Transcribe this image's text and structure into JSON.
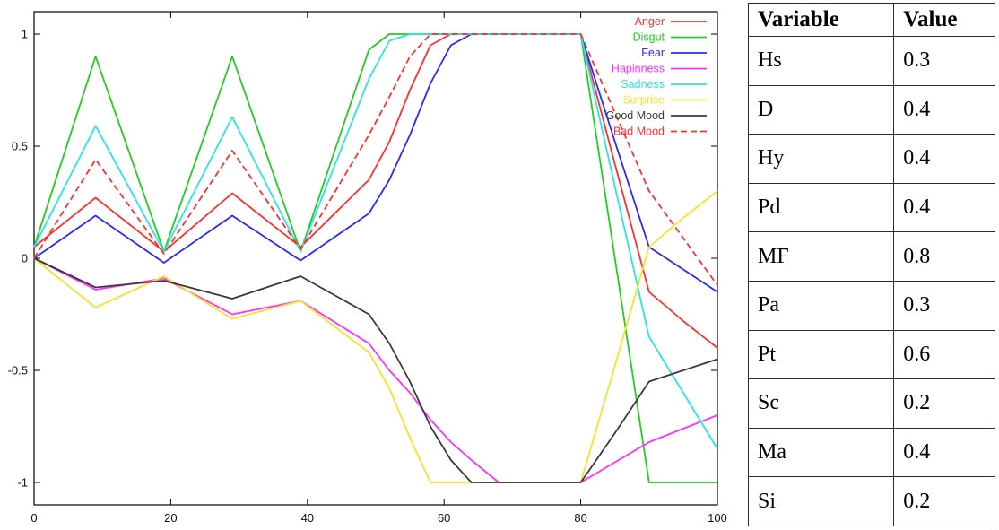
{
  "chart_data": {
    "type": "line",
    "title": "",
    "xlabel": "",
    "ylabel": "",
    "xlim": [
      0,
      100
    ],
    "ylim": [
      -1.1,
      1.1
    ],
    "grid": false,
    "legend_position": "top-right",
    "x_ticks": [
      0,
      20,
      40,
      60,
      80,
      100
    ],
    "y_ticks": [
      -1,
      -0.5,
      0,
      0.5,
      1
    ],
    "y_tick_labels": [
      "-1",
      "-0.5",
      "0",
      "0.5",
      "1"
    ],
    "x": [
      0,
      9,
      19,
      29,
      39,
      49,
      52,
      55,
      58,
      61,
      64,
      68,
      80,
      85,
      90,
      95,
      100
    ],
    "series": [
      {
        "name": "Anger",
        "color": "#ff2f2f",
        "dash": null,
        "values": [
          0.05,
          0.27,
          0.03,
          0.29,
          0.05,
          0.35,
          0.52,
          0.75,
          0.95,
          1,
          1,
          1,
          1,
          0.42,
          -0.15,
          -0.28,
          -0.4
        ]
      },
      {
        "name": "Disgut",
        "color": "#22cc22",
        "dash": null,
        "values": [
          0.05,
          0.9,
          0.03,
          0.9,
          0.03,
          0.93,
          1,
          1,
          1,
          1,
          1,
          1,
          1,
          0.0,
          -1,
          -1,
          -1
        ]
      },
      {
        "name": "Fear",
        "color": "#2929ff",
        "dash": null,
        "values": [
          0.0,
          0.19,
          -0.02,
          0.19,
          -0.01,
          0.2,
          0.35,
          0.55,
          0.78,
          0.95,
          1,
          1,
          1,
          0.52,
          0.05,
          -0.05,
          -0.15
        ]
      },
      {
        "name": "Hapinness",
        "color": "#ff30ff",
        "dash": null,
        "values": [
          0.0,
          -0.14,
          -0.09,
          -0.25,
          -0.19,
          -0.38,
          -0.5,
          -0.6,
          -0.72,
          -0.82,
          -0.9,
          -1,
          -1,
          -0.91,
          -0.82,
          -0.76,
          -0.7
        ]
      },
      {
        "name": "Sadness",
        "color": "#2be4e4",
        "dash": null,
        "values": [
          0.05,
          0.59,
          0.03,
          0.63,
          0.03,
          0.8,
          0.97,
          1,
          1,
          1,
          1,
          1,
          1,
          0.32,
          -0.35,
          -0.6,
          -0.85
        ]
      },
      {
        "name": "Surprise",
        "color": "#f3e32d",
        "dash": null,
        "values": [
          0.0,
          -0.22,
          -0.08,
          -0.27,
          -0.19,
          -0.42,
          -0.58,
          -0.8,
          -1,
          -1,
          -1,
          -1,
          -1,
          -0.48,
          0.05,
          0.18,
          0.3
        ]
      },
      {
        "name": "Good Mood",
        "color": "#3a3a3a",
        "dash": null,
        "values": [
          0.0,
          -0.13,
          -0.1,
          -0.18,
          -0.08,
          -0.25,
          -0.38,
          -0.55,
          -0.75,
          -0.9,
          -1,
          -1,
          -1,
          -0.78,
          -0.55,
          -0.5,
          -0.45
        ]
      },
      {
        "name": "Bad Mood",
        "color": "#ff2f2f",
        "dash": "7,4",
        "values": [
          0.0,
          0.44,
          0.02,
          0.48,
          0.04,
          0.55,
          0.72,
          0.9,
          1,
          1,
          1,
          1,
          1,
          0.65,
          0.3,
          0.09,
          -0.12
        ]
      }
    ]
  },
  "table": {
    "headers": [
      "Variable",
      "Value"
    ],
    "rows": [
      {
        "variable": "Hs",
        "value": "0.3"
      },
      {
        "variable": "D",
        "value": "0.4"
      },
      {
        "variable": "Hy",
        "value": "0.4"
      },
      {
        "variable": "Pd",
        "value": "0.4"
      },
      {
        "variable": "MF",
        "value": "0.8"
      },
      {
        "variable": "Pa",
        "value": "0.3"
      },
      {
        "variable": "Pt",
        "value": "0.6"
      },
      {
        "variable": "Sc",
        "value": "0.2"
      },
      {
        "variable": "Ma",
        "value": "0.4"
      },
      {
        "variable": "Si",
        "value": "0.2"
      }
    ]
  }
}
